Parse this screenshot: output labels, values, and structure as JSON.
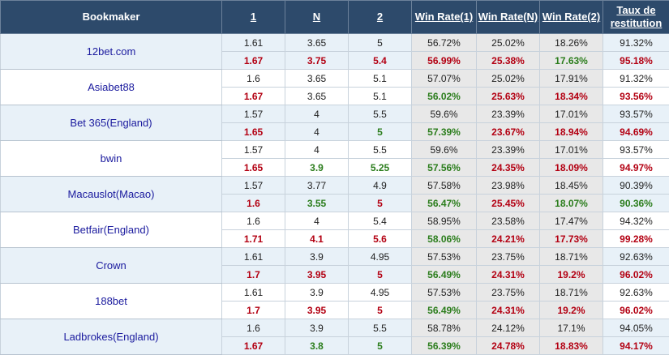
{
  "headers": {
    "bookmaker": "Bookmaker",
    "o1": "1",
    "on": "N",
    "o2": "2",
    "w1": "Win Rate(1)",
    "wn": "Win Rate(N)",
    "w2": "Win Rate(2)",
    "ret": "Taux de restitution"
  },
  "colors": {
    "header_bg": "#2d4a6b",
    "up": "#b30012",
    "down": "#2b7d1c",
    "bookmaker_text": "#1a1a9e",
    "row_alt_bg": "#e8f1f8",
    "rate_bg": "#e8e8e8"
  },
  "bookmakers": [
    {
      "name": "12bet.com",
      "opening": [
        "1.61",
        "3.65",
        "5",
        "56.72%",
        "25.02%",
        "18.26%",
        "91.32%"
      ],
      "closing": [
        "1.67",
        "3.75",
        "5.4",
        "56.99%",
        "25.38%",
        "17.63%",
        "95.18%"
      ],
      "closing_dir": [
        "up",
        "up",
        "up",
        "up",
        "up",
        "down",
        "up"
      ]
    },
    {
      "name": "Asiabet88",
      "opening": [
        "1.6",
        "3.65",
        "5.1",
        "57.07%",
        "25.02%",
        "17.91%",
        "91.32%"
      ],
      "closing": [
        "1.67",
        "3.65",
        "5.1",
        "56.02%",
        "25.63%",
        "18.34%",
        "93.56%"
      ],
      "closing_dir": [
        "up",
        "n",
        "n",
        "down",
        "up",
        "up",
        "up"
      ]
    },
    {
      "name": "Bet 365(England)",
      "opening": [
        "1.57",
        "4",
        "5.5",
        "59.6%",
        "23.39%",
        "17.01%",
        "93.57%"
      ],
      "closing": [
        "1.65",
        "4",
        "5",
        "57.39%",
        "23.67%",
        "18.94%",
        "94.69%"
      ],
      "closing_dir": [
        "up",
        "n",
        "down",
        "down",
        "up",
        "up",
        "up"
      ]
    },
    {
      "name": "bwin",
      "opening": [
        "1.57",
        "4",
        "5.5",
        "59.6%",
        "23.39%",
        "17.01%",
        "93.57%"
      ],
      "closing": [
        "1.65",
        "3.9",
        "5.25",
        "57.56%",
        "24.35%",
        "18.09%",
        "94.97%"
      ],
      "closing_dir": [
        "up",
        "down",
        "down",
        "down",
        "up",
        "up",
        "up"
      ]
    },
    {
      "name": "Macauslot(Macao)",
      "opening": [
        "1.57",
        "3.77",
        "4.9",
        "57.58%",
        "23.98%",
        "18.45%",
        "90.39%"
      ],
      "closing": [
        "1.6",
        "3.55",
        "5",
        "56.47%",
        "25.45%",
        "18.07%",
        "90.36%"
      ],
      "closing_dir": [
        "up",
        "down",
        "up",
        "down",
        "up",
        "down",
        "down"
      ]
    },
    {
      "name": "Betfair(England)",
      "opening": [
        "1.6",
        "4",
        "5.4",
        "58.95%",
        "23.58%",
        "17.47%",
        "94.32%"
      ],
      "closing": [
        "1.71",
        "4.1",
        "5.6",
        "58.06%",
        "24.21%",
        "17.73%",
        "99.28%"
      ],
      "closing_dir": [
        "up",
        "up",
        "up",
        "down",
        "up",
        "up",
        "up"
      ]
    },
    {
      "name": "Crown",
      "opening": [
        "1.61",
        "3.9",
        "4.95",
        "57.53%",
        "23.75%",
        "18.71%",
        "92.63%"
      ],
      "closing": [
        "1.7",
        "3.95",
        "5",
        "56.49%",
        "24.31%",
        "19.2%",
        "96.02%"
      ],
      "closing_dir": [
        "up",
        "up",
        "up",
        "down",
        "up",
        "up",
        "up"
      ]
    },
    {
      "name": "188bet",
      "opening": [
        "1.61",
        "3.9",
        "4.95",
        "57.53%",
        "23.75%",
        "18.71%",
        "92.63%"
      ],
      "closing": [
        "1.7",
        "3.95",
        "5",
        "56.49%",
        "24.31%",
        "19.2%",
        "96.02%"
      ],
      "closing_dir": [
        "up",
        "up",
        "up",
        "down",
        "up",
        "up",
        "up"
      ]
    },
    {
      "name": "Ladbrokes(England)",
      "opening": [
        "1.6",
        "3.9",
        "5.5",
        "58.78%",
        "24.12%",
        "17.1%",
        "94.05%"
      ],
      "closing": [
        "1.67",
        "3.8",
        "5",
        "56.39%",
        "24.78%",
        "18.83%",
        "94.17%"
      ],
      "closing_dir": [
        "up",
        "down",
        "down",
        "down",
        "up",
        "up",
        "up"
      ]
    }
  ]
}
